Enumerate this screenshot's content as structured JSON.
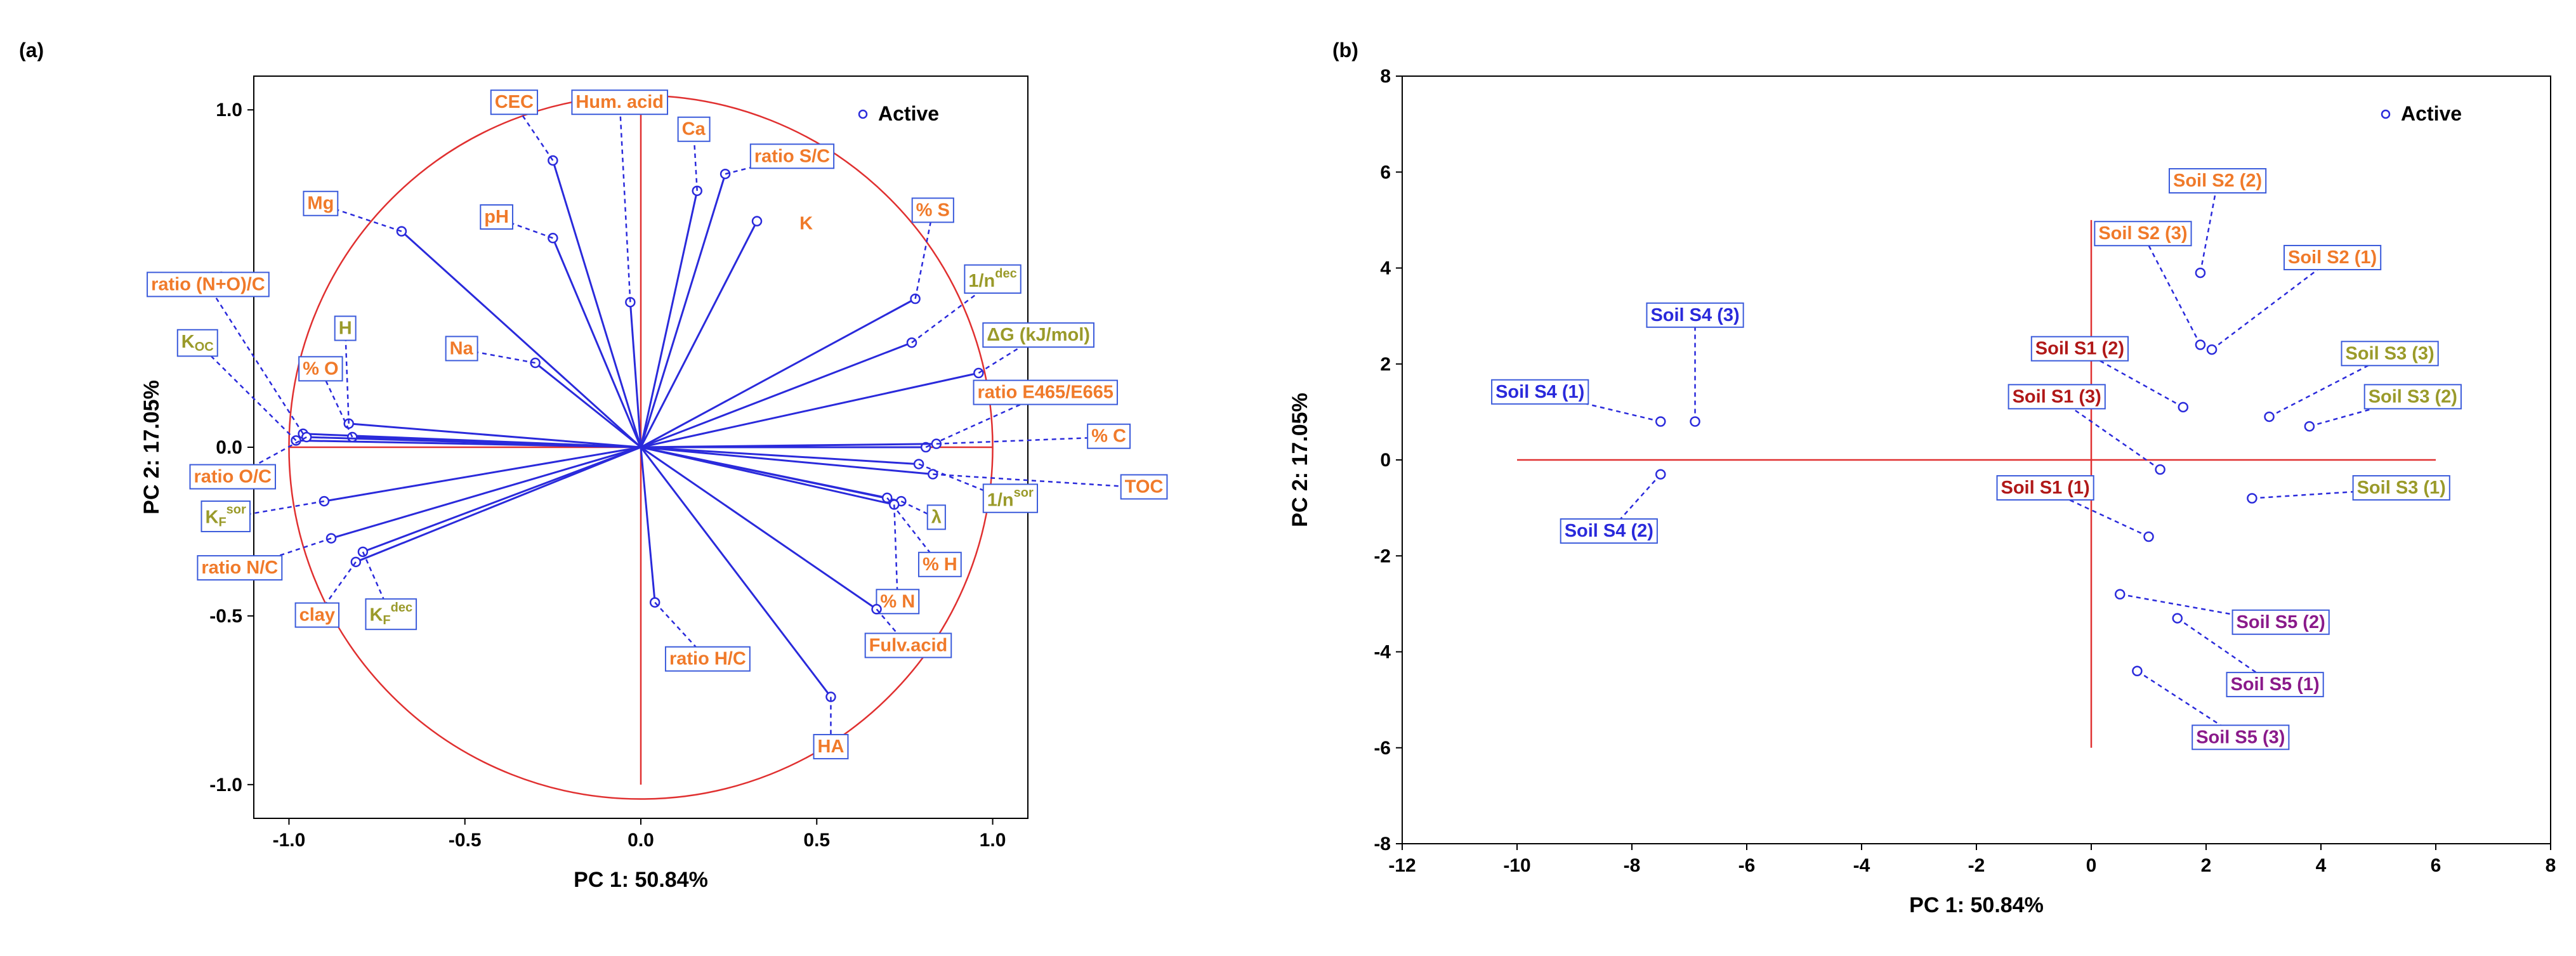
{
  "chart_data": [
    {
      "panel": "(a)",
      "type": "scatter",
      "subtype": "correlation circle",
      "xlabel": "PC 1: 50.84%",
      "ylabel": "PC 2: 17.05%",
      "xlim": [
        -1.1,
        1.1
      ],
      "ylim": [
        -1.1,
        1.1
      ],
      "xticks": [
        -1.0,
        -0.5,
        0.0,
        0.5,
        1.0
      ],
      "yticks": [
        -1.0,
        -0.5,
        0.0,
        0.5,
        1.0
      ],
      "xtick_labels": [
        "-1.0",
        "-0.5",
        "0.0",
        "0.5",
        "1.0"
      ],
      "ytick_labels": [
        "-1.0",
        "-0.5",
        "0.0",
        "0.5",
        "1.0"
      ],
      "circle_radius": 1.0,
      "legend": {
        "label": "Active",
        "placement": "top-right"
      },
      "colors": {
        "vector": "#2a2adb",
        "circle": "#e03030",
        "label_orange": "#f07a2a",
        "label_olive": "#9a9a2a",
        "box_border": "#3b5bdb"
      },
      "points": [
        {
          "label": "CEC",
          "x": -0.25,
          "y": 0.85,
          "lx": -0.36,
          "ly": 1.02,
          "color": "orange"
        },
        {
          "label": "Hum. acid",
          "x": -0.03,
          "y": 0.43,
          "lx": -0.06,
          "ly": 1.02,
          "color": "orange"
        },
        {
          "label": "Ca",
          "x": 0.16,
          "y": 0.76,
          "lx": 0.15,
          "ly": 0.94,
          "color": "orange"
        },
        {
          "label": "ratio S/C",
          "x": 0.24,
          "y": 0.81,
          "lx": 0.43,
          "ly": 0.86,
          "color": "orange"
        },
        {
          "label": "K",
          "x": 0.33,
          "y": 0.67,
          "lx": 0.47,
          "ly": 0.66,
          "color": "orange",
          "nobox": true
        },
        {
          "label": "Mg",
          "x": -0.68,
          "y": 0.64,
          "lx": -0.91,
          "ly": 0.72,
          "color": "orange"
        },
        {
          "label": "pH",
          "x": -0.25,
          "y": 0.62,
          "lx": -0.41,
          "ly": 0.68,
          "color": "orange"
        },
        {
          "label": "% S",
          "x": 0.78,
          "y": 0.44,
          "lx": 0.83,
          "ly": 0.7,
          "color": "orange"
        },
        {
          "label": "1/n",
          "sup": "dec",
          "x": 0.77,
          "y": 0.31,
          "lx": 1.0,
          "ly": 0.49,
          "color": "olive"
        },
        {
          "label": "ratio (N+O)/C",
          "x": -0.96,
          "y": 0.04,
          "lx": -1.23,
          "ly": 0.48,
          "color": "orange"
        },
        {
          "label": "K",
          "sub": "OC",
          "x": -0.98,
          "y": 0.02,
          "lx": -1.26,
          "ly": 0.31,
          "color": "olive"
        },
        {
          "label": "H",
          "x": -0.83,
          "y": 0.07,
          "lx": -0.84,
          "ly": 0.35,
          "color": "olive"
        },
        {
          "label": "% O",
          "x": -0.82,
          "y": 0.03,
          "lx": -0.91,
          "ly": 0.23,
          "color": "orange"
        },
        {
          "label": "Na",
          "x": -0.3,
          "y": 0.25,
          "lx": -0.51,
          "ly": 0.29,
          "color": "orange"
        },
        {
          "label": "ΔG (kJ/mol)",
          "x": 0.96,
          "y": 0.22,
          "lx": 1.13,
          "ly": 0.33,
          "color": "olive"
        },
        {
          "label": "ratio E465/E665",
          "x": 0.81,
          "y": 0.0,
          "lx": 1.15,
          "ly": 0.16,
          "color": "orange"
        },
        {
          "label": "% C",
          "x": 0.84,
          "y": 0.01,
          "lx": 1.33,
          "ly": 0.03,
          "color": "orange"
        },
        {
          "label": "TOC",
          "x": 0.83,
          "y": -0.08,
          "lx": 1.43,
          "ly": -0.12,
          "color": "orange"
        },
        {
          "label": "1/n",
          "sup": "sor",
          "x": 0.79,
          "y": -0.05,
          "lx": 1.05,
          "ly": -0.16,
          "color": "olive"
        },
        {
          "label": "λ",
          "x": 0.74,
          "y": -0.16,
          "lx": 0.84,
          "ly": -0.21,
          "color": "olive"
        },
        {
          "label": "% H",
          "x": 0.7,
          "y": -0.15,
          "lx": 0.85,
          "ly": -0.35,
          "color": "orange"
        },
        {
          "label": "% N",
          "x": 0.72,
          "y": -0.17,
          "lx": 0.73,
          "ly": -0.46,
          "color": "orange"
        },
        {
          "label": "Fulv.acid",
          "x": 0.67,
          "y": -0.48,
          "lx": 0.76,
          "ly": -0.59,
          "color": "orange"
        },
        {
          "label": "HA",
          "x": 0.54,
          "y": -0.74,
          "lx": 0.54,
          "ly": -0.89,
          "color": "orange"
        },
        {
          "label": "ratio H/C",
          "x": 0.04,
          "y": -0.46,
          "lx": 0.19,
          "ly": -0.63,
          "color": "orange"
        },
        {
          "label": "ratio O/C",
          "x": -0.95,
          "y": 0.03,
          "lx": -1.16,
          "ly": -0.09,
          "color": "orange"
        },
        {
          "label": "K",
          "sub": "F",
          "sup": "sor",
          "x": -0.9,
          "y": -0.16,
          "lx": -1.18,
          "ly": -0.21,
          "color": "olive"
        },
        {
          "label": "ratio N/C",
          "x": -0.88,
          "y": -0.27,
          "lx": -1.14,
          "ly": -0.36,
          "color": "orange"
        },
        {
          "label": "clay",
          "x": -0.81,
          "y": -0.34,
          "lx": -0.92,
          "ly": -0.5,
          "color": "orange"
        },
        {
          "label": "K",
          "sub": "F",
          "sup": "dec",
          "x": -0.79,
          "y": -0.31,
          "lx": -0.71,
          "ly": -0.5,
          "color": "olive"
        }
      ]
    },
    {
      "panel": "(b)",
      "type": "scatter",
      "xlabel": "PC 1: 50.84%",
      "ylabel": "PC 2: 17.05%",
      "xlim": [
        -12,
        8
      ],
      "ylim": [
        -8,
        8
      ],
      "xticks": [
        -12,
        -10,
        -8,
        -6,
        -4,
        -2,
        0,
        2,
        4,
        6,
        8
      ],
      "yticks": [
        -8,
        -6,
        -4,
        -2,
        0,
        2,
        4,
        6,
        8
      ],
      "xtick_labels": [
        "-12",
        "-10",
        "-8",
        "-6",
        "-4",
        "-2",
        "0",
        "2",
        "4",
        "6",
        "8"
      ],
      "ytick_labels": [
        "-8",
        "-6",
        "-4",
        "-2",
        "0",
        "2",
        "4",
        "6",
        "8"
      ],
      "reference_lines": {
        "horizontal": {
          "y": 0,
          "x_from": -10,
          "x_to": 6
        },
        "vertical": {
          "x": 0,
          "y_from": -6,
          "y_to": 5
        }
      },
      "legend": {
        "label": "Active",
        "placement": "top-right"
      },
      "colors": {
        "S1": "#b01818",
        "S2": "#f07a2a",
        "S3": "#9a9a2a",
        "S4": "#2a2adb",
        "S5": "#8a1a8a",
        "point": "#2a2adb",
        "reference": "#e03030"
      },
      "points": [
        {
          "label": "Soil S2 (2)",
          "x": 1.9,
          "y": 3.9,
          "lx": 2.2,
          "ly": 5.8,
          "group": "S2"
        },
        {
          "label": "Soil S2 (3)",
          "x": 1.9,
          "y": 2.4,
          "lx": 0.9,
          "ly": 4.7,
          "group": "S2"
        },
        {
          "label": "Soil S2 (1)",
          "x": 2.1,
          "y": 2.3,
          "lx": 4.2,
          "ly": 4.2,
          "group": "S2"
        },
        {
          "label": "Soil S3 (3)",
          "x": 3.1,
          "y": 0.9,
          "lx": 5.2,
          "ly": 2.2,
          "group": "S3"
        },
        {
          "label": "Soil S3 (2)",
          "x": 3.8,
          "y": 0.7,
          "lx": 5.6,
          "ly": 1.3,
          "group": "S3"
        },
        {
          "label": "Soil S3 (1)",
          "x": 2.8,
          "y": -0.8,
          "lx": 5.4,
          "ly": -0.6,
          "group": "S3"
        },
        {
          "label": "Soil S1 (2)",
          "x": 1.6,
          "y": 1.1,
          "lx": -0.2,
          "ly": 2.3,
          "group": "S1"
        },
        {
          "label": "Soil S1 (3)",
          "x": 1.2,
          "y": -0.2,
          "lx": -0.6,
          "ly": 1.3,
          "group": "S1"
        },
        {
          "label": "Soil S1 (1)",
          "x": 1.0,
          "y": -1.6,
          "lx": -0.8,
          "ly": -0.6,
          "group": "S1"
        },
        {
          "label": "Soil S5 (2)",
          "x": 0.5,
          "y": -2.8,
          "lx": 3.3,
          "ly": -3.4,
          "group": "S5"
        },
        {
          "label": "Soil S5 (1)",
          "x": 1.5,
          "y": -3.3,
          "lx": 3.2,
          "ly": -4.7,
          "group": "S5"
        },
        {
          "label": "Soil S5 (3)",
          "x": 0.8,
          "y": -4.4,
          "lx": 2.6,
          "ly": -5.8,
          "group": "S5"
        },
        {
          "label": "Soil S4 (3)",
          "x": -6.9,
          "y": 0.8,
          "lx": -6.9,
          "ly": 3.0,
          "group": "S4"
        },
        {
          "label": "Soil S4 (1)",
          "x": -7.5,
          "y": 0.8,
          "lx": -9.6,
          "ly": 1.4,
          "group": "S4"
        },
        {
          "label": "Soil S4 (2)",
          "x": -7.5,
          "y": -0.3,
          "lx": -8.4,
          "ly": -1.5,
          "group": "S4"
        }
      ]
    }
  ]
}
